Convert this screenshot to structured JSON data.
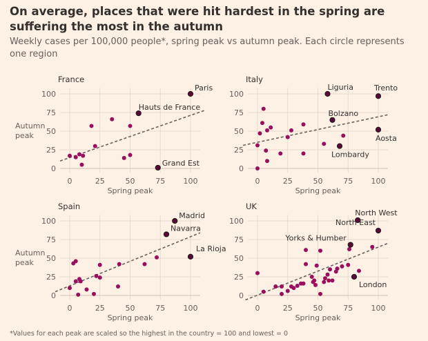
{
  "header": {
    "title": "On average, places that were hit hardest in the spring are suffering the most in the autumn",
    "subtitle": "Weekly cases per 100,000 people*, spring peak vs autumn peak. Each circle represents one region"
  },
  "footnote": "*Values for each peak are scaled so the highest in the country = 100 and lowest = 0",
  "colors": {
    "background": "#fdf1e5",
    "point": "#990f5d",
    "highlight": "#5a0a36",
    "trend": "#66605c",
    "grid": "#e6d9ce"
  },
  "chart_data": [
    {
      "type": "scatter",
      "title": "France",
      "xlabel": "Spring peak",
      "ylabel": "Autumn peak",
      "xlim": [
        -8,
        108
      ],
      "ylim": [
        -5,
        108
      ],
      "xticks": [
        "0",
        "25",
        "50",
        "75",
        "100"
      ],
      "yticks": [
        "0",
        "25",
        "50",
        "75",
        "100"
      ],
      "trend": [
        [
          -8,
          10
        ],
        [
          112,
          78
        ]
      ],
      "points": [
        [
          0,
          17
        ],
        [
          5,
          15
        ],
        [
          8,
          19
        ],
        [
          10,
          5
        ],
        [
          11,
          17
        ],
        [
          18,
          57
        ],
        [
          21,
          30
        ],
        [
          35,
          66
        ],
        [
          45,
          14
        ],
        [
          50,
          57
        ],
        [
          50,
          18
        ],
        [
          73,
          1
        ],
        [
          57,
          74
        ],
        [
          100,
          100
        ]
      ],
      "labels": [
        {
          "text": "Paris",
          "x": 100,
          "y": 100
        },
        {
          "text": "Hauts de France",
          "x": 57,
          "y": 74
        },
        {
          "text": "Grand Est",
          "x": 73,
          "y": 1
        }
      ]
    },
    {
      "type": "scatter",
      "title": "Italy",
      "xlabel": "Spring peak",
      "ylabel": "",
      "xlim": [
        -8,
        108
      ],
      "ylim": [
        -5,
        108
      ],
      "xticks": [
        "0",
        "25",
        "50",
        "75",
        "100"
      ],
      "yticks": [
        "0",
        "25",
        "50",
        "75",
        "100"
      ],
      "trend": [
        [
          -12,
          31
        ],
        [
          108,
          72
        ]
      ],
      "points": [
        [
          0,
          0
        ],
        [
          0,
          31
        ],
        [
          2,
          47
        ],
        [
          4,
          61
        ],
        [
          5,
          80
        ],
        [
          7,
          24
        ],
        [
          8,
          51
        ],
        [
          8,
          10
        ],
        [
          11,
          55
        ],
        [
          19,
          20
        ],
        [
          25,
          42
        ],
        [
          28,
          51
        ],
        [
          38,
          59
        ],
        [
          38,
          20
        ],
        [
          55,
          33
        ],
        [
          71,
          44
        ],
        [
          58,
          100
        ],
        [
          62,
          65
        ],
        [
          68,
          30
        ],
        [
          100,
          97
        ],
        [
          100,
          52
        ]
      ],
      "labels": [
        {
          "text": "Liguria",
          "x": 58,
          "y": 100
        },
        {
          "text": "Trento",
          "x": 100,
          "y": 97
        },
        {
          "text": "Bolzano",
          "x": 62,
          "y": 65
        },
        {
          "text": "Aosta",
          "x": 100,
          "y": 52
        },
        {
          "text": "Lombardy",
          "x": 68,
          "y": 30
        }
      ]
    },
    {
      "type": "scatter",
      "title": "Spain",
      "xlabel": "Spring peak",
      "ylabel": "Autumn peak",
      "xlim": [
        -8,
        108
      ],
      "ylim": [
        -5,
        108
      ],
      "xticks": [
        "0",
        "25",
        "50",
        "75",
        "100"
      ],
      "yticks": [
        "0",
        "25",
        "50",
        "75",
        "100"
      ],
      "trend": [
        [
          -12,
          5
        ],
        [
          108,
          84
        ]
      ],
      "points": [
        [
          0,
          10
        ],
        [
          3,
          43
        ],
        [
          5,
          46
        ],
        [
          5,
          19
        ],
        [
          7,
          1
        ],
        [
          8,
          22
        ],
        [
          9,
          19
        ],
        [
          14,
          8
        ],
        [
          20,
          2
        ],
        [
          22,
          26
        ],
        [
          25,
          41
        ],
        [
          25,
          24
        ],
        [
          41,
          42
        ],
        [
          40,
          12
        ],
        [
          62,
          42
        ],
        [
          72,
          51
        ],
        [
          80,
          82
        ],
        [
          87,
          100
        ],
        [
          100,
          52
        ]
      ],
      "labels": [
        {
          "text": "Madrid",
          "x": 87,
          "y": 100
        },
        {
          "text": "Navarra",
          "x": 80,
          "y": 82
        },
        {
          "text": "La Rioja",
          "x": 100,
          "y": 52
        }
      ]
    },
    {
      "type": "scatter",
      "title": "UK",
      "xlabel": "Spring peak",
      "ylabel": "",
      "xlim": [
        -8,
        108
      ],
      "ylim": [
        -5,
        108
      ],
      "xticks": [
        "0",
        "25",
        "50",
        "75",
        "100"
      ],
      "yticks": [
        "0",
        "25",
        "50",
        "75",
        "100"
      ],
      "trend": [
        [
          -10,
          -6
        ],
        [
          108,
          70
        ]
      ],
      "points": [
        [
          0,
          30
        ],
        [
          5,
          5
        ],
        [
          15,
          12
        ],
        [
          20,
          12
        ],
        [
          20,
          2
        ],
        [
          25,
          6
        ],
        [
          28,
          12
        ],
        [
          30,
          10
        ],
        [
          33,
          13
        ],
        [
          36,
          16
        ],
        [
          38,
          16
        ],
        [
          40,
          42
        ],
        [
          40,
          61
        ],
        [
          45,
          25
        ],
        [
          46,
          18
        ],
        [
          47,
          20
        ],
        [
          48,
          14
        ],
        [
          49,
          40
        ],
        [
          52,
          2
        ],
        [
          52,
          60
        ],
        [
          55,
          18
        ],
        [
          56,
          23
        ],
        [
          58,
          28
        ],
        [
          59,
          20
        ],
        [
          60,
          35
        ],
        [
          62,
          20
        ],
        [
          65,
          32
        ],
        [
          66,
          36
        ],
        [
          70,
          39
        ],
        [
          75,
          41
        ],
        [
          76,
          62
        ],
        [
          77,
          68
        ],
        [
          80,
          25
        ],
        [
          84,
          33
        ],
        [
          95,
          65
        ],
        [
          100,
          87
        ],
        [
          83,
          101
        ]
      ],
      "labels": [
        {
          "text": "North West",
          "x": 83,
          "y": 101
        },
        {
          "text": "North East",
          "x": 100,
          "y": 87
        },
        {
          "text": "Yorks & Humber",
          "x": 77,
          "y": 68
        },
        {
          "text": "London",
          "x": 80,
          "y": 25
        }
      ]
    }
  ]
}
